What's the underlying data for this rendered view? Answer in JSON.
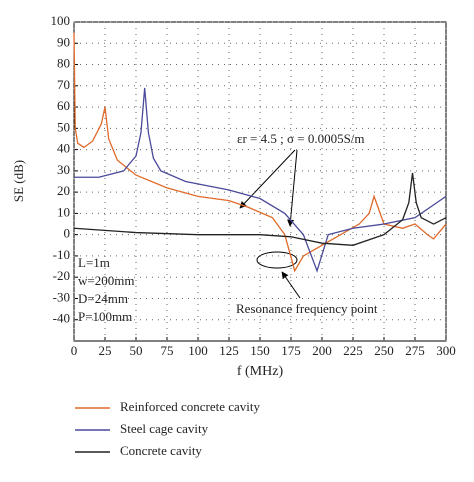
{
  "chart_data": {
    "type": "line",
    "xlabel": "f (MHz)",
    "ylabel": "SE (dB)",
    "xlim": [
      0,
      300
    ],
    "xticks": [
      0,
      25,
      50,
      75,
      100,
      125,
      150,
      175,
      200,
      225,
      250,
      275,
      300
    ],
    "ylim": [
      -50,
      100
    ],
    "yticks": [
      -40,
      -30,
      -20,
      -10,
      0,
      10,
      20,
      30,
      40,
      50,
      60,
      70,
      80,
      90,
      100
    ],
    "grid": true,
    "legend": "bottom",
    "annotations": [
      "εr = 4.5 ;  σ = 0.0005S/m",
      "Resonance frequency point",
      "L=1m",
      "w=200mm",
      "D=24mm",
      "P=100mm"
    ],
    "series": [
      {
        "name": "Reinforced concrete cavity",
        "color": "#e06a2a",
        "x": [
          0,
          1,
          3,
          8,
          15,
          22,
          25,
          28,
          35,
          50,
          75,
          100,
          125,
          140,
          160,
          170,
          178,
          185,
          200,
          215,
          230,
          238,
          242,
          250,
          265,
          275,
          285,
          290,
          300
        ],
        "values": [
          95,
          50,
          43,
          41,
          44,
          52,
          60,
          45,
          35,
          28,
          22,
          18,
          16,
          13,
          8,
          0,
          -17,
          -10,
          -5,
          0,
          5,
          10,
          18,
          5,
          3,
          5,
          0,
          -2,
          5
        ]
      },
      {
        "name": "Steel cage cavity",
        "color": "#4a4a9a",
        "x": [
          0,
          20,
          40,
          50,
          54,
          57,
          60,
          64,
          70,
          90,
          125,
          150,
          170,
          185,
          196,
          205,
          225,
          250,
          275,
          300
        ],
        "values": [
          27,
          27,
          30,
          37,
          48,
          69,
          48,
          36,
          30,
          25,
          21,
          17,
          10,
          0,
          -17,
          0,
          3,
          5,
          8,
          18
        ]
      },
      {
        "name": "Concrete cavity",
        "color": "#222222",
        "x": [
          0,
          50,
          100,
          150,
          175,
          200,
          225,
          250,
          265,
          270,
          273,
          276,
          280,
          290,
          300
        ],
        "values": [
          3,
          1,
          0,
          0,
          -1,
          -4,
          -5,
          0,
          7,
          15,
          29,
          15,
          8,
          5,
          8
        ]
      }
    ]
  }
}
